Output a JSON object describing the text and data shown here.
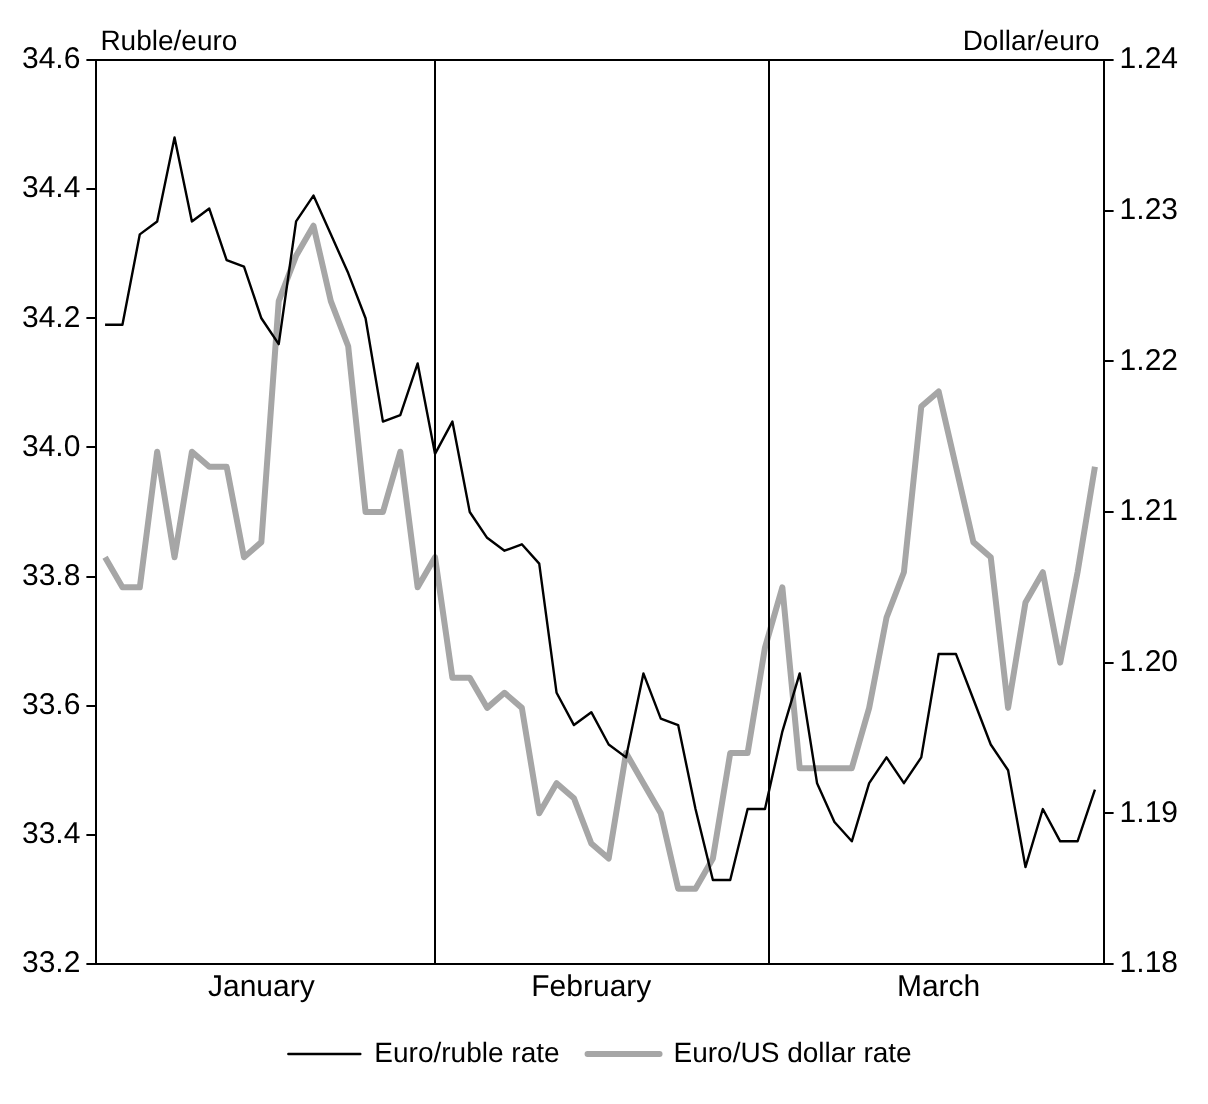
{
  "chart_data": {
    "type": "line",
    "ylabel": "Ruble/euro",
    "y2label": "Dollar/euro",
    "categories": [
      null,
      null,
      null,
      null,
      null,
      null,
      null,
      null,
      null,
      "January",
      null,
      null,
      null,
      null,
      null,
      null,
      null,
      null,
      null,
      null,
      null,
      null,
      null,
      null,
      null,
      null,
      null,
      null,
      "February",
      null,
      null,
      null,
      null,
      null,
      null,
      null,
      null,
      null,
      null,
      null,
      null,
      null,
      null,
      null,
      null,
      null,
      null,
      null,
      "March",
      null,
      null,
      null,
      null,
      null,
      null,
      null,
      null,
      null
    ],
    "ylim": [
      33.2,
      34.6
    ],
    "yticks": [
      33.2,
      33.4,
      33.6,
      33.8,
      {
        "value": 34,
        "label": "34.0"
      },
      34.2,
      34.4,
      34.6
    ],
    "y2lim": [
      1.18,
      1.24
    ],
    "y2ticks": [
      1.18,
      1.19,
      {
        "value": 1.2,
        "label": "1.20"
      },
      1.21,
      1.22,
      1.23,
      1.24
    ],
    "series": [
      {
        "name": "Euro/ruble rate",
        "color": "#000000",
        "values": [
          34.19,
          34.19,
          34.33,
          34.35,
          34.48,
          34.35,
          34.37,
          34.29,
          34.28,
          34.2,
          34.16,
          34.35,
          34.39,
          34.33,
          34.27,
          34.2,
          34.04,
          34.05,
          34.13,
          33.99,
          34.04,
          33.9,
          33.86,
          33.84,
          33.85,
          33.82,
          33.62,
          33.57,
          33.59,
          33.54,
          33.52,
          33.65,
          33.58,
          33.57,
          33.44,
          33.33,
          33.33,
          33.44,
          33.44,
          33.56,
          33.65,
          33.48,
          33.42,
          33.39,
          33.48,
          33.52,
          33.48,
          33.52,
          33.68,
          33.68,
          33.61,
          33.54,
          33.5,
          33.35,
          33.44,
          33.39,
          33.39,
          33.47
        ]
      },
      {
        "name": "Euro/US dollar rate",
        "color": "#a6a6a6",
        "axis": "y2",
        "values": [
          1.207,
          1.205,
          1.205,
          1.214,
          1.207,
          1.214,
          1.213,
          1.213,
          1.207,
          1.208,
          1.224,
          1.227,
          1.229,
          1.224,
          1.221,
          1.21,
          1.21,
          1.214,
          1.205,
          1.207,
          1.199,
          1.199,
          1.197,
          1.198,
          1.197,
          1.19,
          1.192,
          1.191,
          1.188,
          1.187,
          1.194,
          1.192,
          1.19,
          1.185,
          1.185,
          1.187,
          1.194,
          1.194,
          1.201,
          1.205,
          1.193,
          1.193,
          1.193,
          1.193,
          1.197,
          1.203,
          1.206,
          1.217,
          1.218,
          1.213,
          1.208,
          1.207,
          1.197,
          1.204,
          1.206,
          1.2,
          1.206,
          1.213
        ]
      }
    ],
    "grid": false,
    "legend": "bottom",
    "marker": "none",
    "line_style": "solid"
  }
}
